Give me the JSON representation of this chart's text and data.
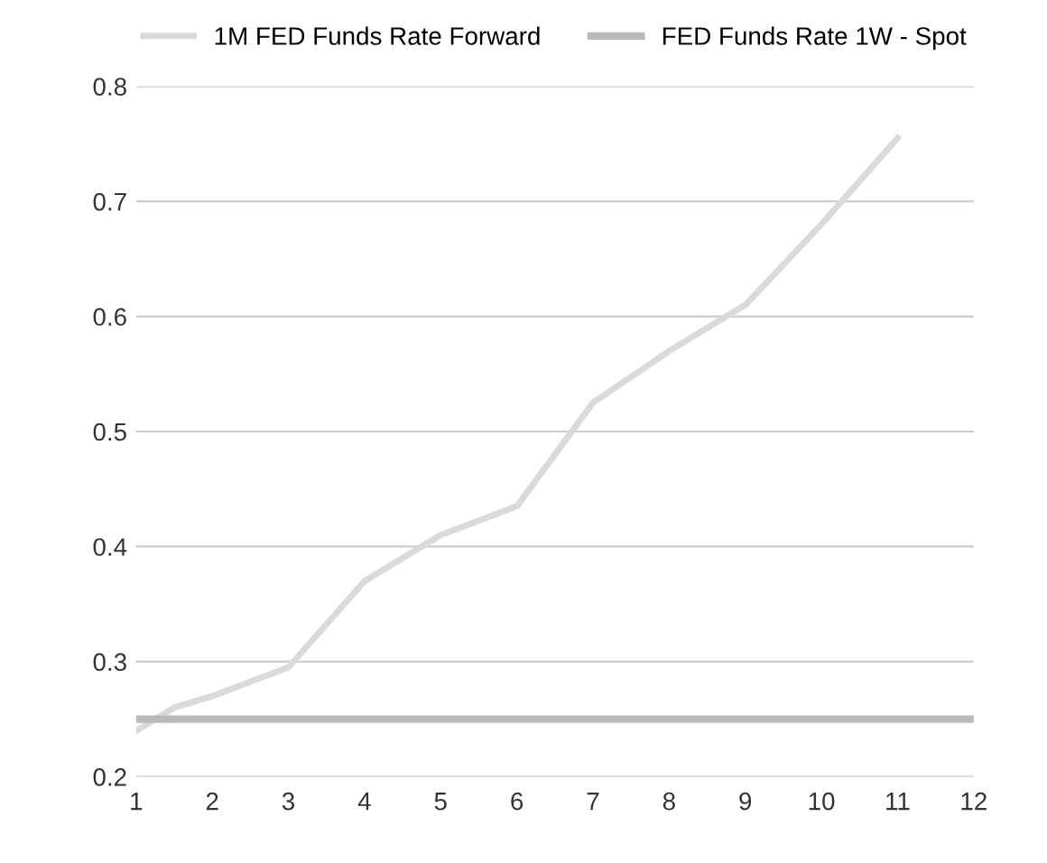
{
  "chart_data": {
    "type": "line",
    "legend": "top",
    "grid": "y",
    "xlim": [
      1,
      12
    ],
    "xticks": [
      1,
      2,
      3,
      4,
      5,
      6,
      7,
      8,
      9,
      10,
      11,
      12
    ],
    "ylim": [
      0.2,
      0.8
    ],
    "yticks": [
      0.2,
      0.3,
      0.4,
      0.5,
      0.6,
      0.7,
      0.8
    ],
    "series": [
      {
        "name": "1M FED Funds Rate Forward",
        "color": "#dadada",
        "x": [
          1,
          1.5,
          2,
          3,
          4,
          5,
          6,
          7,
          8,
          9,
          10,
          11
        ],
        "values": [
          0.24,
          0.26,
          0.27,
          0.295,
          0.37,
          0.41,
          0.435,
          0.525,
          0.57,
          0.61,
          0.68,
          0.755
        ]
      },
      {
        "name": "FED Funds Rate 1W - Spot",
        "color": "#b9b9b9",
        "x": [
          1,
          12
        ],
        "values": [
          0.25,
          0.25
        ]
      }
    ]
  }
}
